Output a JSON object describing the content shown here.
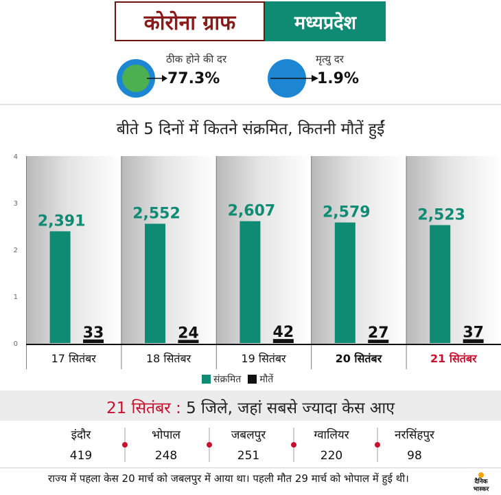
{
  "header": {
    "title": "कोरोना ग्राफ",
    "state": "मध्यप्रदेश"
  },
  "recovery": {
    "label": "ठीक होने की दर",
    "value": "77.3%"
  },
  "mortality": {
    "label": "मृत्यु दर",
    "value": "1.9%"
  },
  "colors": {
    "teal": "#0f8a73",
    "black": "#111111",
    "red": "#c8102e",
    "blue": "#1c86d3",
    "green": "#4caf50"
  },
  "chart_data": {
    "type": "bar",
    "title": "बीते 5 दिनों में कितने संक्रमित, कितनी मौतें हुईं",
    "categories": [
      "17 सितंबर",
      "18 सितंबर",
      "19 सितंबर",
      "20 सितंबर",
      "21 सितंबर"
    ],
    "series": [
      {
        "name": "संक्रमित",
        "values": [
          2391,
          2552,
          2607,
          2579,
          2523
        ],
        "labels": [
          "2,391",
          "2,552",
          "2,607",
          "2,579",
          "2,523"
        ]
      },
      {
        "name": "मौतें",
        "values": [
          33,
          24,
          42,
          27,
          37
        ],
        "labels": [
          "33",
          "24",
          "42",
          "27",
          "37"
        ]
      }
    ],
    "y_ticks": [
      "0",
      "1",
      "2",
      "3",
      "4"
    ],
    "ylim": [
      0,
      4000
    ],
    "legend": "bottom-center"
  },
  "districts": {
    "title_date": "21 सितंबर :",
    "title_rest": " 5 जिले, जहां सबसे ज्यादा केस आए",
    "items": [
      {
        "name": "इंदौर",
        "value": "419"
      },
      {
        "name": "भोपाल",
        "value": "248"
      },
      {
        "name": "जबलपुर",
        "value": "251"
      },
      {
        "name": "ग्वालियर",
        "value": "220"
      },
      {
        "name": "नरसिंहपुर",
        "value": "98"
      }
    ]
  },
  "footer": {
    "note": "राज्य में पहला केस 20 मार्च को जबलपुर में आया था। पहली मौत 29 मार्च को भोपाल में हुई थी।",
    "logo_line1": "दैनिक",
    "logo_line2": "भास्कर"
  }
}
